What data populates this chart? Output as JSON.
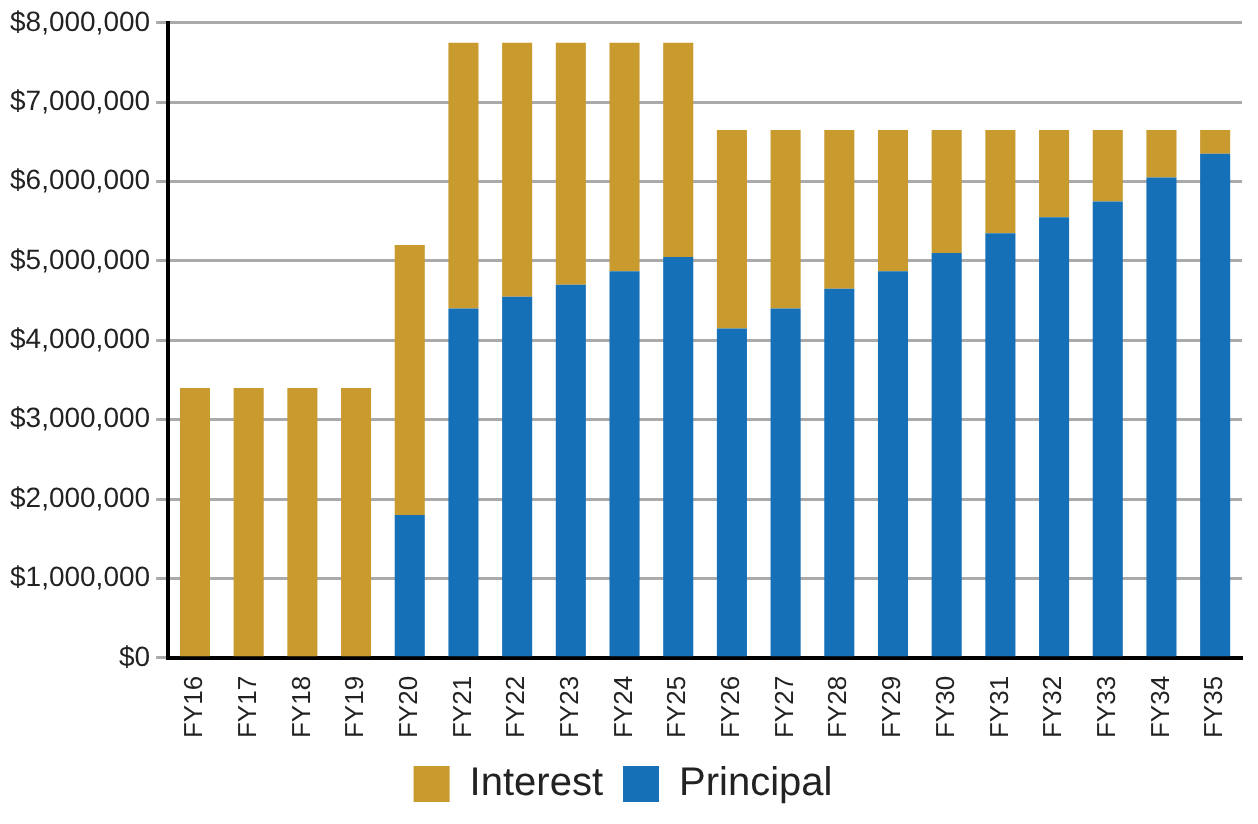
{
  "chart_data": {
    "type": "bar",
    "stacked": true,
    "categories": [
      "FY16",
      "FY17",
      "FY18",
      "FY19",
      "FY20",
      "FY21",
      "FY22",
      "FY23",
      "FY24",
      "FY25",
      "FY26",
      "FY27",
      "FY28",
      "FY29",
      "FY30",
      "FY31",
      "FY32",
      "FY33",
      "FY34",
      "FY35"
    ],
    "series": [
      {
        "name": "Principal",
        "color": "#1570b8",
        "values": [
          0,
          0,
          0,
          0,
          1800000,
          4400000,
          4550000,
          4700000,
          4870000,
          5050000,
          4150000,
          4400000,
          4650000,
          4870000,
          5100000,
          5350000,
          5550000,
          5750000,
          6050000,
          6350000
        ]
      },
      {
        "name": "Interest",
        "color": "#c99a2e",
        "values": [
          3400000,
          3400000,
          3400000,
          3400000,
          3400000,
          3350000,
          3200000,
          3050000,
          2880000,
          2700000,
          2500000,
          2250000,
          2000000,
          1780000,
          1550000,
          1300000,
          1100000,
          900000,
          600000,
          300000
        ]
      }
    ],
    "ylim": [
      0,
      8000000
    ],
    "yticks": [
      {
        "value": 0,
        "label": "$0"
      },
      {
        "value": 1000000,
        "label": "$1,000,000"
      },
      {
        "value": 2000000,
        "label": "$2,000,000"
      },
      {
        "value": 3000000,
        "label": "$3,000,000"
      },
      {
        "value": 4000000,
        "label": "$4,000,000"
      },
      {
        "value": 5000000,
        "label": "$5,000,000"
      },
      {
        "value": 6000000,
        "label": "$6,000,000"
      },
      {
        "value": 7000000,
        "label": "$7,000,000"
      },
      {
        "value": 8000000,
        "label": "$8,000,000"
      }
    ],
    "grid": "y",
    "legend": "bottom"
  }
}
